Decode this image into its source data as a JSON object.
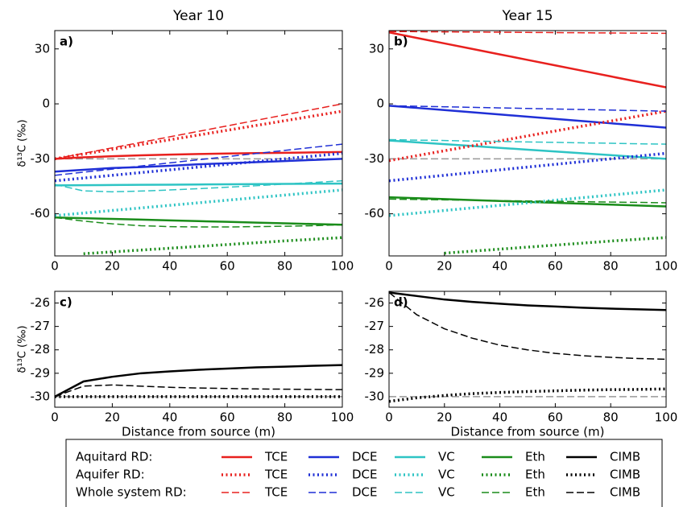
{
  "chart_data": [
    {
      "type": "line",
      "title": "Year 10",
      "panel_label": "a)",
      "ylabel": "δ¹³C (‰)",
      "xlim": [
        0,
        100
      ],
      "xticks": [
        0,
        20,
        40,
        60,
        80,
        100
      ],
      "ylim": [
        -83,
        40
      ],
      "yticks": [
        30,
        0,
        -30,
        -60
      ],
      "ref_line": -30,
      "ref_color": "#999999",
      "x": [
        0,
        10,
        20,
        30,
        40,
        50,
        60,
        70,
        80,
        90,
        100
      ],
      "series": [
        {
          "name": "TCE",
          "color": "#e8201e",
          "style": "solid",
          "values": [
            -30,
            -29.2,
            -28.6,
            -28.1,
            -27.7,
            -27.4,
            -27.1,
            -26.9,
            -26.7,
            -26.5,
            -26.3
          ]
        },
        {
          "name": "DCE",
          "color": "#1f2fd6",
          "style": "solid",
          "values": [
            -37,
            -36,
            -35,
            -34.5,
            -33.8,
            -33,
            -32.4,
            -31.8,
            -31.2,
            -30.6,
            -30
          ]
        },
        {
          "name": "VC",
          "color": "#2ec4c4",
          "style": "solid",
          "values": [
            -44.5,
            -44.4,
            -44.3,
            -44.2,
            -44.1,
            -44,
            -43.9,
            -43.8,
            -43.7,
            -43.6,
            -43.5
          ]
        },
        {
          "name": "Eth",
          "color": "#1a8c1a",
          "style": "solid",
          "values": [
            -62,
            -62.4,
            -62.8,
            -63.2,
            -63.6,
            -64,
            -64.4,
            -64.8,
            -65.2,
            -65.6,
            -66
          ]
        },
        {
          "name": "TCE",
          "color": "#e8201e",
          "style": "dotted",
          "values": [
            -30,
            -27.4,
            -24.8,
            -22.2,
            -19.6,
            -17,
            -14.4,
            -11.8,
            -9.2,
            -6.6,
            -4
          ]
        },
        {
          "name": "DCE",
          "color": "#1f2fd6",
          "style": "dotted",
          "values": [
            -42,
            -40.5,
            -39,
            -37.5,
            -36,
            -34.5,
            -33,
            -31.5,
            -30,
            -28.5,
            -27
          ]
        },
        {
          "name": "VC",
          "color": "#2ec4c4",
          "style": "dotted",
          "values": [
            -61,
            -59.6,
            -58.2,
            -56.8,
            -55.4,
            -54,
            -52.6,
            -51.2,
            -49.8,
            -48.4,
            -47
          ]
        },
        {
          "name": "Eth",
          "color": "#1a8c1a",
          "style": "dotted",
          "values": [
            null,
            -81.8,
            -80.8,
            -79.8,
            -78.8,
            -77.8,
            -76.8,
            -75.8,
            -74.8,
            -73.9,
            -73
          ]
        },
        {
          "name": "TCE",
          "color": "#e8201e",
          "style": "dashed",
          "values": [
            -30,
            -27,
            -24,
            -21,
            -18,
            -15,
            -12,
            -9,
            -6,
            -3,
            0
          ]
        },
        {
          "name": "DCE",
          "color": "#1f2fd6",
          "style": "dashed",
          "values": [
            -39,
            -37.3,
            -35.6,
            -33.9,
            -32.2,
            -30.5,
            -28.8,
            -27.1,
            -25.4,
            -23.7,
            -22
          ]
        },
        {
          "name": "VC",
          "color": "#2ec4c4",
          "style": "dashed",
          "values": [
            -44,
            -47.5,
            -48,
            -47.6,
            -47,
            -46.3,
            -45.5,
            -44.7,
            -43.8,
            -42.9,
            -42
          ]
        },
        {
          "name": "Eth",
          "color": "#1a8c1a",
          "style": "dashed",
          "values": [
            -62,
            -64,
            -65.5,
            -66.5,
            -67,
            -67.2,
            -67.2,
            -67,
            -66.8,
            -66.5,
            -66
          ]
        }
      ]
    },
    {
      "type": "line",
      "title": "Year 15",
      "panel_label": "b)",
      "xlim": [
        0,
        100
      ],
      "xticks": [
        0,
        20,
        40,
        60,
        80,
        100
      ],
      "ylim": [
        -83,
        40
      ],
      "yticks": [
        30,
        0,
        -30,
        -60
      ],
      "ref_line": -30,
      "ref_color": "#999999",
      "x": [
        0,
        10,
        20,
        30,
        40,
        50,
        60,
        70,
        80,
        90,
        100
      ],
      "series": [
        {
          "name": "TCE",
          "color": "#e8201e",
          "style": "solid",
          "values": [
            39,
            36,
            33,
            30,
            27,
            24,
            21,
            18,
            15,
            12,
            9
          ]
        },
        {
          "name": "DCE",
          "color": "#1f2fd6",
          "style": "solid",
          "values": [
            -1,
            -2.2,
            -3.4,
            -4.6,
            -5.8,
            -7,
            -8.2,
            -9.4,
            -10.6,
            -11.8,
            -13
          ]
        },
        {
          "name": "VC",
          "color": "#2ec4c4",
          "style": "solid",
          "values": [
            -20,
            -21,
            -22,
            -23,
            -24,
            -25,
            -26,
            -27,
            -28,
            -29,
            -30
          ]
        },
        {
          "name": "Eth",
          "color": "#1a8c1a",
          "style": "solid",
          "values": [
            -51,
            -51.5,
            -52,
            -52.5,
            -53,
            -53.5,
            -54,
            -54.5,
            -55,
            -55.5,
            -56
          ]
        },
        {
          "name": "TCE",
          "color": "#e8201e",
          "style": "dotted",
          "values": [
            -31,
            -28.3,
            -25.6,
            -22.9,
            -20.2,
            -17.5,
            -14.8,
            -12.1,
            -9.4,
            -6.7,
            -4
          ]
        },
        {
          "name": "DCE",
          "color": "#1f2fd6",
          "style": "dotted",
          "values": [
            -42,
            -40.5,
            -39,
            -37.5,
            -36,
            -34.5,
            -33,
            -31.5,
            -30,
            -28.5,
            -27
          ]
        },
        {
          "name": "VC",
          "color": "#2ec4c4",
          "style": "dotted",
          "values": [
            -61,
            -59.6,
            -58.2,
            -56.8,
            -55.4,
            -54,
            -52.6,
            -51.2,
            -49.8,
            -48.4,
            -47
          ]
        },
        {
          "name": "Eth",
          "color": "#1a8c1a",
          "style": "dotted",
          "values": [
            null,
            null,
            -81.5,
            -80.4,
            -79.3,
            -78.2,
            -77.1,
            -76,
            -74.9,
            -73.9,
            -73
          ]
        },
        {
          "name": "TCE",
          "color": "#e8201e",
          "style": "dashed",
          "values": [
            39.5,
            39.4,
            39.3,
            39.2,
            39.1,
            39,
            38.9,
            38.8,
            38.7,
            38.6,
            38.5
          ]
        },
        {
          "name": "DCE",
          "color": "#1f2fd6",
          "style": "dashed",
          "values": [
            -1,
            -1.3,
            -1.6,
            -1.9,
            -2.2,
            -2.5,
            -2.8,
            -3.1,
            -3.4,
            -3.7,
            -4
          ]
        },
        {
          "name": "VC",
          "color": "#2ec4c4",
          "style": "dashed",
          "values": [
            -19.5,
            -19.8,
            -20,
            -20.3,
            -20.5,
            -20.8,
            -21,
            -21.3,
            -21.5,
            -21.8,
            -22
          ]
        },
        {
          "name": "Eth",
          "color": "#1a8c1a",
          "style": "dashed",
          "values": [
            -52,
            -52.2,
            -52.4,
            -52.6,
            -52.8,
            -53,
            -53.2,
            -53.4,
            -53.6,
            -53.8,
            -54
          ]
        }
      ]
    },
    {
      "type": "line",
      "panel_label": "c)",
      "ylabel": "δ¹³C (‰)",
      "xlabel": "Distance from source (m)",
      "xlim": [
        0,
        100
      ],
      "xticks": [
        0,
        20,
        40,
        60,
        80,
        100
      ],
      "ylim": [
        -30.45,
        -25.5
      ],
      "yticks": [
        -26,
        -27,
        -28,
        -29,
        -30
      ],
      "ref_line": -30,
      "ref_color": "#999999",
      "x": [
        0,
        10,
        20,
        30,
        40,
        50,
        60,
        70,
        80,
        90,
        100
      ],
      "series": [
        {
          "name": "CIMB",
          "color": "#000000",
          "style": "solid",
          "values": [
            -30,
            -29.35,
            -29.15,
            -29,
            -28.92,
            -28.85,
            -28.8,
            -28.75,
            -28.72,
            -28.68,
            -28.65
          ]
        },
        {
          "name": "CIMB",
          "color": "#000000",
          "style": "dotted",
          "values": [
            -30,
            -30,
            -30,
            -30,
            -30,
            -30,
            -30,
            -30,
            -30,
            -30,
            -30
          ]
        },
        {
          "name": "CIMB",
          "color": "#000000",
          "style": "dashed",
          "values": [
            -30,
            -29.55,
            -29.5,
            -29.55,
            -29.6,
            -29.63,
            -29.65,
            -29.67,
            -29.68,
            -29.69,
            -29.7
          ]
        }
      ]
    },
    {
      "type": "line",
      "panel_label": "d)",
      "xlabel": "Distance from source (m)",
      "xlim": [
        0,
        100
      ],
      "xticks": [
        0,
        20,
        40,
        60,
        80,
        100
      ],
      "ylim": [
        -30.45,
        -25.5
      ],
      "yticks": [
        -26,
        -27,
        -28,
        -29,
        -30
      ],
      "ref_line": -30,
      "ref_color": "#999999",
      "x": [
        0,
        10,
        20,
        30,
        40,
        50,
        60,
        70,
        80,
        90,
        100
      ],
      "series": [
        {
          "name": "CIMB",
          "color": "#000000",
          "style": "solid",
          "values": [
            -25.55,
            -25.7,
            -25.85,
            -25.95,
            -26.03,
            -26.1,
            -26.15,
            -26.2,
            -26.24,
            -26.27,
            -26.3
          ]
        },
        {
          "name": "CIMB",
          "color": "#000000",
          "style": "dotted",
          "values": [
            -30.2,
            -30.05,
            -29.95,
            -29.87,
            -29.82,
            -29.78,
            -29.75,
            -29.72,
            -29.7,
            -29.69,
            -29.67
          ]
        },
        {
          "name": "CIMB",
          "color": "#000000",
          "style": "dashed",
          "values": [
            -25.55,
            -26.5,
            -27.1,
            -27.5,
            -27.8,
            -28,
            -28.15,
            -28.25,
            -28.32,
            -28.37,
            -28.4
          ]
        }
      ]
    }
  ],
  "legend": {
    "groups": [
      "Aquitard RD:",
      "Aquifer RD:",
      "Whole system RD:"
    ]
  }
}
